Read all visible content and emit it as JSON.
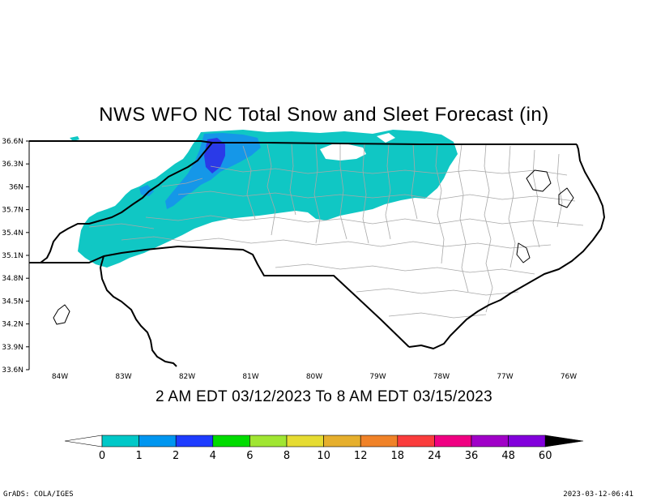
{
  "title": "NWS WFO NC Total Snow and Sleet Forecast (in)",
  "valid_period": "2 AM EDT 03/12/2023 To 8 AM EDT 03/15/2023",
  "footer_left": "GrADS: COLA/IGES",
  "footer_right": "2023-03-12-06:41",
  "latitude_labels": [
    "36.6N",
    "36.3N",
    "36N",
    "35.7N",
    "35.4N",
    "35.1N",
    "34.8N",
    "34.5N",
    "34.2N",
    "33.9N",
    "33.6N"
  ],
  "longitude_labels": [
    "84W",
    "83W",
    "82W",
    "81W",
    "80W",
    "79W",
    "78W",
    "77W",
    "76W"
  ],
  "colorbar": {
    "labels": [
      "0",
      "1",
      "2",
      "4",
      "6",
      "8",
      "10",
      "12",
      "18",
      "24",
      "36",
      "48",
      "60"
    ],
    "colors": [
      "#00c8c8",
      "#0096f0",
      "#1e3cff",
      "#00dc00",
      "#a0e632",
      "#e6dc32",
      "#e6af2d",
      "#f08228",
      "#fa3c3c",
      "#f00082",
      "#a000c8",
      "#8200dc"
    ],
    "under_color": "#ffffff",
    "over_color": "#000000"
  },
  "snow_colors": {
    "trace": "#10c7c4",
    "one_to_two": "#1597e8",
    "two_to_four": "#2a3ae8"
  }
}
